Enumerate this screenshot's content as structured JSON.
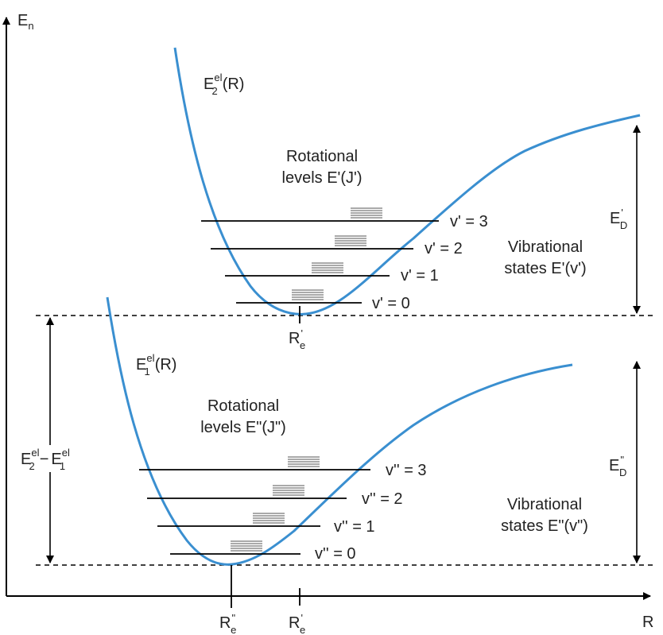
{
  "axes": {
    "y_label": "E",
    "y_label_sub": "n",
    "x_label": "R"
  },
  "upper_state": {
    "potential_label": "E",
    "potential_sup": "el",
    "potential_sub": "2",
    "potential_arg": "(R)",
    "rotational_line1": "Rotational",
    "rotational_line2": "levels E'(J')",
    "levels": [
      "v' = 3",
      "v' = 2",
      "v' = 1",
      "v' = 0"
    ],
    "vibrational_line1": "Vibrational",
    "vibrational_line2": "states E'(v')",
    "dissociation_label": "E",
    "dissociation_sub": "D",
    "dissociation_prime": "'",
    "equilibrium_label": "R",
    "equilibrium_sub": "e",
    "equilibrium_prime": "'"
  },
  "lower_state": {
    "potential_label": "E",
    "potential_sup": "el",
    "potential_sub": "1",
    "potential_arg": "(R)",
    "rotational_line1": "Rotational",
    "rotational_line2": "levels E\"(J\")",
    "levels": [
      "v'' = 3",
      "v'' = 2",
      "v'' = 1",
      "v'' = 0"
    ],
    "vibrational_line1": "Vibrational",
    "vibrational_line2": "states E\"(v\")",
    "dissociation_label": "E",
    "dissociation_sub": "D",
    "dissociation_prime": "\"",
    "equilibrium_label": "R",
    "equilibrium_sub": "e",
    "equilibrium_prime": "\""
  },
  "gap": {
    "label_a": "E",
    "label_a_sup": "el",
    "label_a_sub": "2",
    "minus": "−",
    "label_b": "E",
    "label_b_sup": "el",
    "label_b_sub": "1"
  },
  "bottom_axis": {
    "re_double_label": "R",
    "re_double_prime": "\"",
    "re_double_sub": "e",
    "re_single_label": "R",
    "re_single_prime": "'",
    "re_single_sub": "e"
  },
  "colors": {
    "curve": "#3a8fd0",
    "axis": "#000000",
    "rotational_lines": "#777777"
  }
}
